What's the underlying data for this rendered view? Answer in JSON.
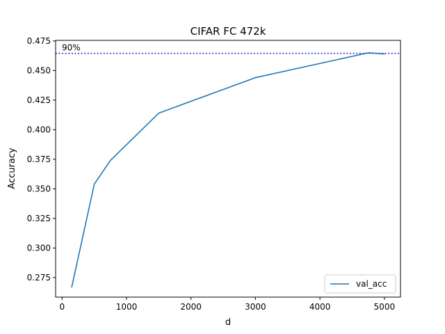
{
  "chart_data": {
    "type": "line",
    "title": "CIFAR FC 472k",
    "xlabel": "d",
    "ylabel": "Accuracy",
    "xlim": [
      -100,
      5250
    ],
    "ylim": [
      0.2585,
      0.4755
    ],
    "xticks": [
      0,
      1000,
      2000,
      3000,
      4000,
      5000
    ],
    "yticks": [
      0.275,
      0.3,
      0.325,
      0.35,
      0.375,
      0.4,
      0.425,
      0.45,
      0.475
    ],
    "xtick_labels": [
      "0",
      "1000",
      "2000",
      "3000",
      "4000",
      "5000"
    ],
    "ytick_labels": [
      "0.275",
      "0.300",
      "0.325",
      "0.350",
      "0.375",
      "0.400",
      "0.425",
      "0.450",
      "0.475"
    ],
    "grid": false,
    "legend_position": "lower-right",
    "series": [
      {
        "name": "val_acc",
        "color": "#1f77b4",
        "x": [
          150,
          500,
          750,
          1500,
          3000,
          4750,
          5000
        ],
        "y": [
          0.267,
          0.354,
          0.374,
          0.414,
          0.444,
          0.465,
          0.464
        ]
      }
    ],
    "reference_line": {
      "label": "90%",
      "y": 0.4645,
      "color": "#0000cc",
      "style": "dotted"
    }
  }
}
